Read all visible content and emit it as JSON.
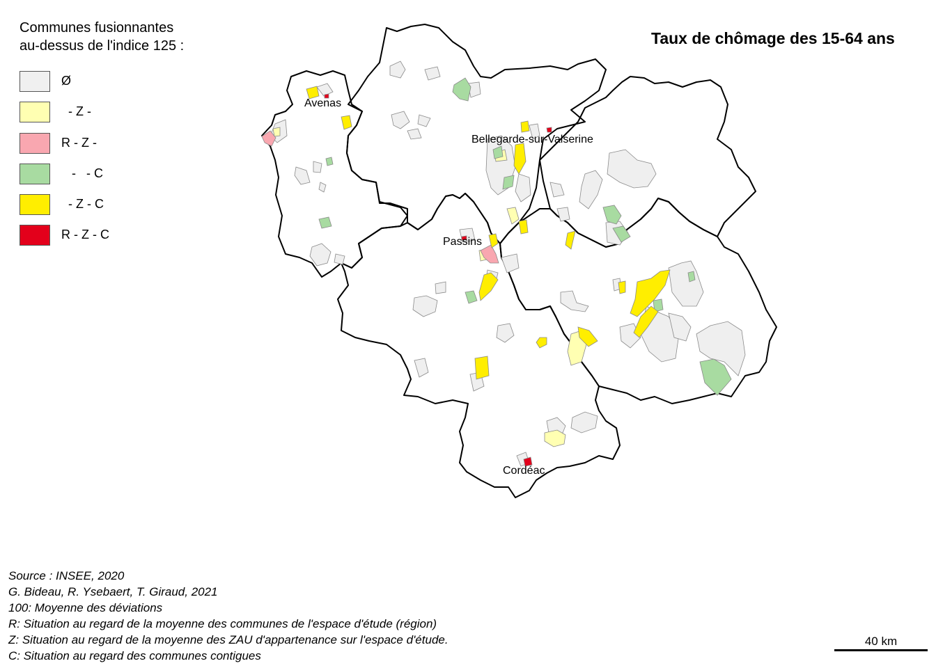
{
  "title": "Taux de chômage des 15-64 ans",
  "legend": {
    "title_line1": "Communes fusionnantes",
    "title_line2": "au-dessus de l'indice 125 :",
    "items": [
      {
        "label": "Ø",
        "color": "#f0f0f0"
      },
      {
        "label": "  - Z -",
        "color": "#ffffb2"
      },
      {
        "label": "R - Z -",
        "color": "#f9a7b0"
      },
      {
        "label": "   -   - C",
        "color": "#a8dba1"
      },
      {
        "label": "  - Z - C",
        "color": "#ffee00"
      },
      {
        "label": "R - Z - C",
        "color": "#e3001b"
      }
    ]
  },
  "cities": [
    "Avenas",
    "Bellegarde-sur-Valserine",
    "Passins",
    "Cordéac"
  ],
  "notes": [
    "Source : INSEE, 2020",
    "G. Bideau, R. Ysebaert, T. Giraud, 2021",
    "100: Moyenne des déviations",
    "R: Situation au regard de la moyenne des communes de l'espace d'étude (région)",
    "Z: Situation au regard de la moyenne des ZAU d'appartenance sur l'espace d'étude.",
    "C: Situation au regard des communes contigues"
  ],
  "scale_label": "40 km"
}
